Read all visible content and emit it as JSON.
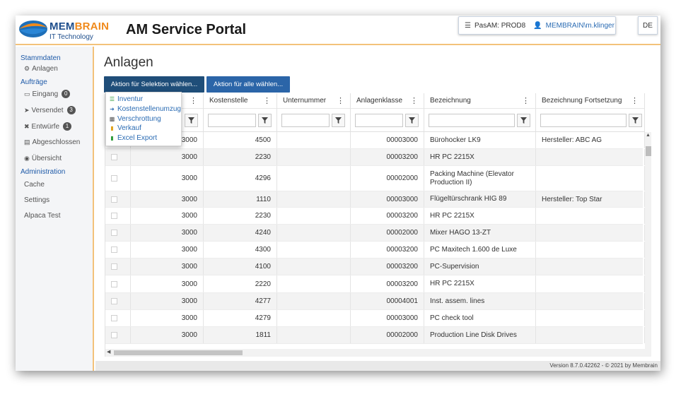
{
  "header": {
    "logo_word_a": "MEM",
    "logo_word_b": "BRAIN",
    "logo_sub": "IT Technology",
    "app_title": "AM Service Portal",
    "environment": "PasAM: PROD8",
    "user": "MEMBRAIN\\m.klinger",
    "language": "DE"
  },
  "sidebar": {
    "section_master": "Stammdaten",
    "item_anlagen": "Anlagen",
    "section_orders": "Aufträge",
    "item_eingang": "Eingang",
    "badge_eingang": "0",
    "item_versendet": "Versendet",
    "badge_versendet": "3",
    "item_entwuerfe": "Entwürfe",
    "badge_entwuerfe": "1",
    "item_abgeschlossen": "Abgeschlossen",
    "item_uebersicht": "Übersicht",
    "section_admin": "Administration",
    "item_cache": "Cache",
    "item_settings": "Settings",
    "item_alpaca": "Alpaca Test"
  },
  "main": {
    "title": "Anlagen",
    "btn_selection": "Aktion für Selektion wählen...",
    "btn_all": "Aktion für alle wählen..."
  },
  "dropdown": {
    "items": [
      "Inventur",
      "Kostenstellenumzug",
      "Verschrottung",
      "Verkauf",
      "Excel Export"
    ]
  },
  "table": {
    "columns": [
      "Kostenstelle",
      "Unternummer",
      "Anlagenklasse",
      "Bezeichnung",
      "Bezeichnung Fortsetzung"
    ],
    "rows": [
      {
        "a": "3000",
        "kst": "4500",
        "un": "",
        "klasse": "00003000",
        "bez": "Bürohocker LK9",
        "fort": "Hersteller: ABC AG"
      },
      {
        "a": "3000",
        "kst": "2230",
        "un": "",
        "klasse": "00003200",
        "bez": "HR PC 2215X",
        "fort": ""
      },
      {
        "a": "3000",
        "kst": "4296",
        "un": "",
        "klasse": "00002000",
        "bez": "Packing Machine (Elevator Production II)",
        "fort": ""
      },
      {
        "a": "3000",
        "kst": "1110",
        "un": "",
        "klasse": "00003000",
        "bez": "Flügeltürschrank HIG 89",
        "fort": "Hersteller: Top Star"
      },
      {
        "a": "3000",
        "kst": "2230",
        "un": "",
        "klasse": "00003200",
        "bez": "HR PC 2215X",
        "fort": ""
      },
      {
        "a": "3000",
        "kst": "4240",
        "un": "",
        "klasse": "00002000",
        "bez": "Mixer HAGO 13-ZT",
        "fort": ""
      },
      {
        "a": "3000",
        "kst": "4300",
        "un": "",
        "klasse": "00003200",
        "bez": "PC Maxitech 1.600 de Luxe",
        "fort": ""
      },
      {
        "a": "3000",
        "kst": "4100",
        "un": "",
        "klasse": "00003200",
        "bez": "PC-Supervision",
        "fort": ""
      },
      {
        "a": "3000",
        "kst": "2220",
        "un": "",
        "klasse": "00003200",
        "bez": "HR PC 2215X",
        "fort": ""
      },
      {
        "a": "3000",
        "kst": "4277",
        "un": "",
        "klasse": "00004001",
        "bez": "Inst. assem. lines",
        "fort": ""
      },
      {
        "a": "3000",
        "kst": "4279",
        "un": "",
        "klasse": "00003000",
        "bez": "PC check tool",
        "fort": ""
      },
      {
        "a": "3000",
        "kst": "1811",
        "un": "",
        "klasse": "00002000",
        "bez": "Production Line Disk Drives",
        "fort": ""
      }
    ]
  },
  "footer": {
    "version": "Version 8.7.0.42262  -  © 2021 by Membrain"
  },
  "colors": {
    "brand_blue": "#1e4e8c",
    "brand_orange": "#f08a1c",
    "primary_button": "#1f4e79",
    "link_blue": "#2a6bb3"
  }
}
